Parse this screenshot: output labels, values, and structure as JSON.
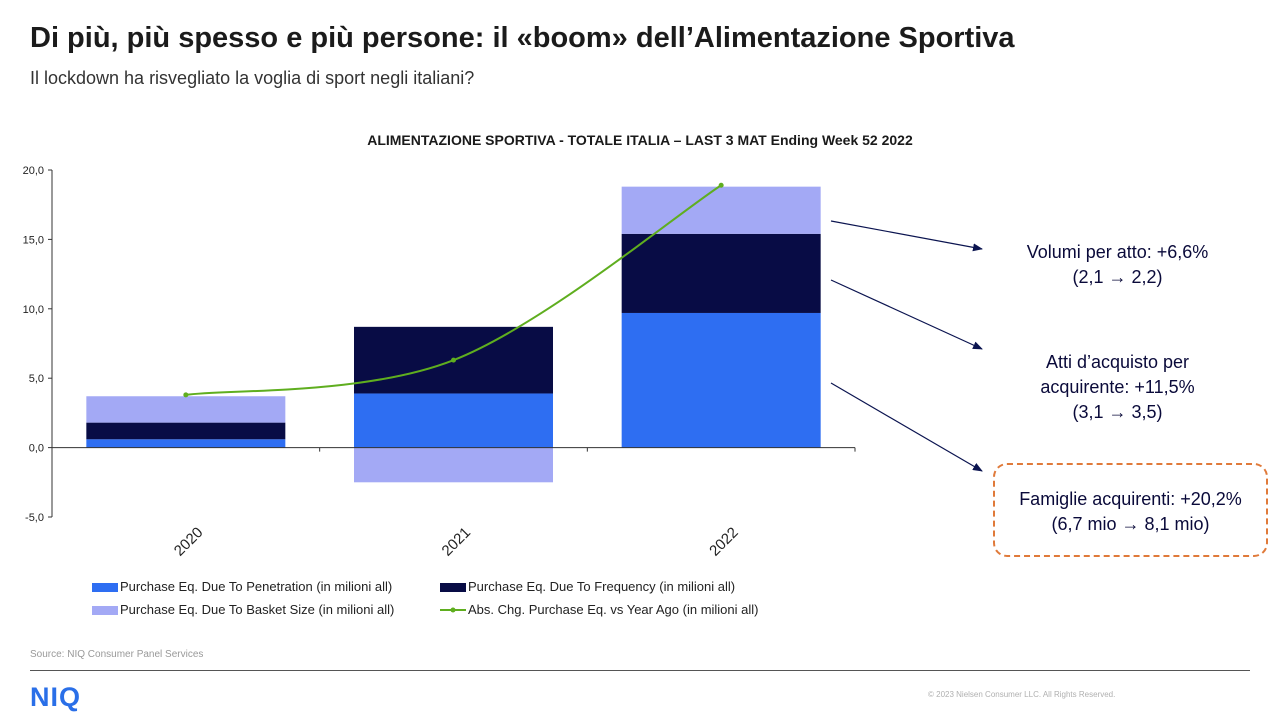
{
  "header": {
    "title": "Di più, più spesso e più persone: il «boom» dell’Alimentazione Sportiva",
    "subtitle": "Il lockdown ha risvegliato la voglia di sport negli italiani?"
  },
  "chart_data": {
    "type": "bar",
    "stacked": true,
    "title": "ALIMENTAZIONE SPORTIVA - TOTALE ITALIA – LAST 3 MAT Ending Week 52 2022",
    "categories": [
      "2020",
      "2021",
      "2022"
    ],
    "ylim": [
      -5,
      20
    ],
    "yticks": [
      "-5,0",
      "0,0",
      "5,0",
      "10,0",
      "15,0",
      "20,0"
    ],
    "grid": false,
    "legend_position": "bottom",
    "series": [
      {
        "name": "Purchase Eq. Due To Penetration (in milioni all)",
        "type": "bar",
        "color": "#2e6ef2",
        "values": [
          0.6,
          3.9,
          9.7
        ]
      },
      {
        "name": "Purchase Eq. Due To Frequency (in milioni all)",
        "type": "bar",
        "color": "#080c45",
        "values": [
          1.2,
          4.8,
          5.7
        ]
      },
      {
        "name": "Purchase Eq. Due To Basket Size (in milioni all)",
        "type": "bar",
        "color": "#a3a9f5",
        "values": [
          1.9,
          -2.5,
          3.4
        ]
      },
      {
        "name": "Abs. Chg. Purchase Eq. vs Year Ago (in milioni all)",
        "type": "line",
        "color": "#5fae1f",
        "values": [
          3.8,
          6.3,
          18.9
        ]
      }
    ]
  },
  "callouts": [
    {
      "line1": "Volumi  per atto: +6,6%",
      "line2": "(2,1 → 2,2)",
      "line3": ""
    },
    {
      "line1": "Atti d’acquisto per",
      "line2": "acquirente: +11,5%",
      "line3": "(3,1 → 3,5)"
    },
    {
      "line1": "Famiglie acquirenti: +20,2%",
      "line2": "(6,7 mio → 8,1 mio)",
      "line3": ""
    }
  ],
  "footer": {
    "source": "Source: NIQ  Consumer Panel  Services",
    "logo": "NIQ",
    "copyright": "© 2023  Nielsen Consumer LLC. All Rights Reserved."
  },
  "colors": {
    "accent": "#e07a3a",
    "arrow": "#0b1450",
    "axis": "#333333"
  }
}
